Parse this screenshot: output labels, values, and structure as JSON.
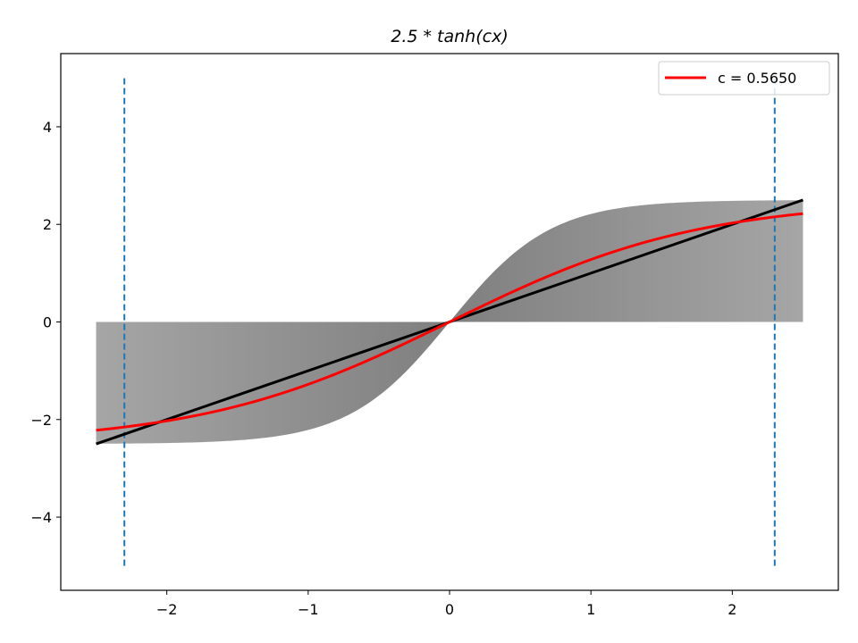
{
  "chart_data": {
    "type": "line",
    "title": "2.5 * tanh(cx)",
    "xlabel": "",
    "ylabel": "",
    "xlim": [
      -2.75,
      2.75
    ],
    "ylim": [
      -5.5,
      5.5
    ],
    "xticks": [
      -2,
      -1,
      0,
      1,
      2
    ],
    "yticks": [
      -4,
      -2,
      0,
      2,
      4
    ],
    "xtick_labels": [
      "−2",
      "−1",
      "0",
      "1",
      "2"
    ],
    "ytick_labels": [
      "−4",
      "−2",
      "0",
      "2",
      "4"
    ],
    "x_range": [
      -2.5,
      2.5
    ],
    "amplitude": 2.5,
    "series": [
      {
        "name": "c = 0.5650",
        "c": 0.565,
        "color": "#ff0000"
      }
    ],
    "reference_line": {
      "slope": 1.0,
      "color": "#000000"
    },
    "envelope": {
      "c_max": 1.4,
      "colors": [
        "#a6a6a6",
        "#7f7f7f"
      ]
    },
    "vertical_lines": [
      {
        "x": -2.3,
        "y": [
          -5,
          5
        ],
        "color": "#1f77b4",
        "style": "dashed"
      },
      {
        "x": 2.3,
        "y": [
          -5,
          5
        ],
        "color": "#1f77b4",
        "style": "dashed"
      }
    ],
    "legend": {
      "placement": "upper right",
      "entries": [
        "c = 0.5650"
      ]
    },
    "grid": false
  }
}
